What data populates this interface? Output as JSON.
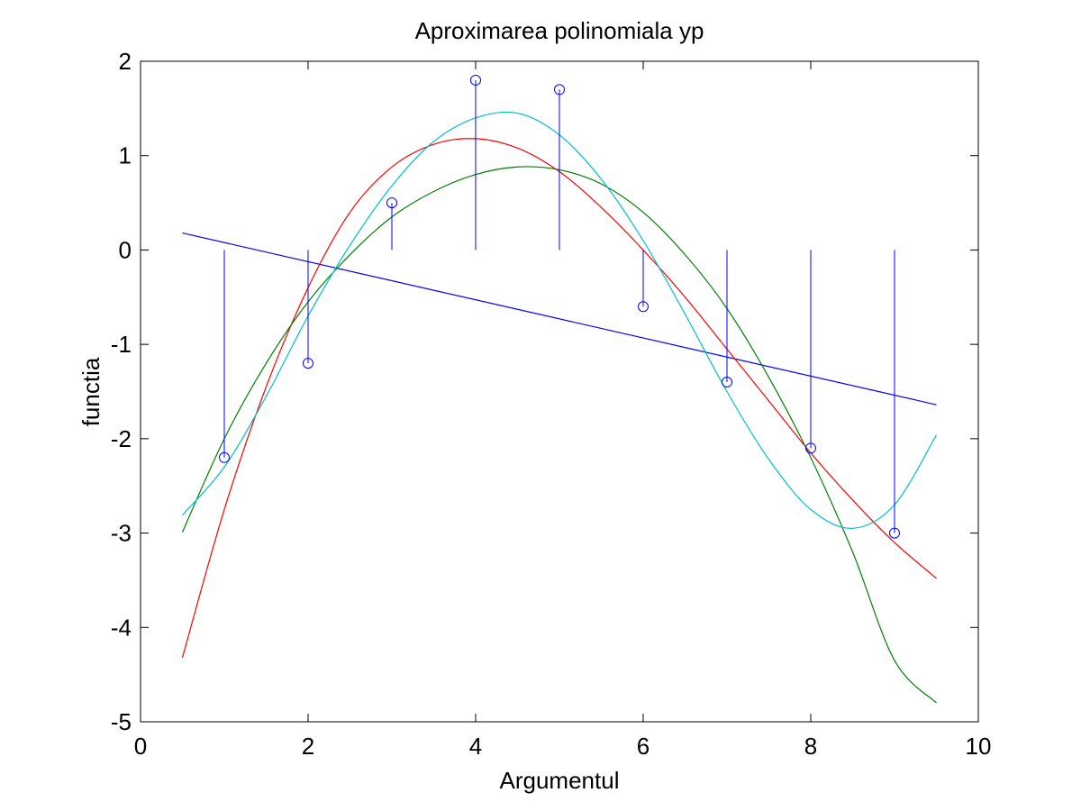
{
  "chart_data": {
    "type": "line",
    "title": "Aproximarea polinomiala yp",
    "xlabel": "Argumentul",
    "ylabel": "functia",
    "xlim": [
      0,
      10
    ],
    "ylim": [
      -5,
      2
    ],
    "xticks": [
      0,
      2,
      4,
      6,
      8,
      10
    ],
    "yticks": [
      -5,
      -4,
      -3,
      -2,
      -1,
      0,
      1,
      2
    ],
    "xtick_labels": [
      "0",
      "2",
      "4",
      "6",
      "8",
      "10"
    ],
    "ytick_labels": [
      "-5",
      "-4",
      "-3",
      "-2",
      "-1",
      "0",
      "1",
      "2"
    ],
    "grid": false,
    "box": true,
    "stem": {
      "color": "#0000ff",
      "marker": "circle",
      "x": [
        1,
        2,
        3,
        4,
        5,
        6,
        7,
        8,
        9
      ],
      "y": [
        -2.2,
        -1.2,
        0.5,
        1.8,
        1.7,
        -0.6,
        -1.4,
        -2.1,
        -3.0
      ]
    },
    "series": [
      {
        "color": "#0000ff",
        "x": [
          0.5,
          9.5
        ],
        "y": [
          0.18,
          -1.64
        ]
      },
      {
        "color": "#ff0000",
        "x": [
          0.5,
          1,
          1.5,
          2,
          2.5,
          3,
          3.5,
          4,
          4.5,
          5,
          5.5,
          6,
          6.5,
          7,
          7.5,
          8,
          8.5,
          9,
          9.5
        ],
        "y": [
          -4.32,
          -2.75,
          -1.45,
          -0.4,
          0.4,
          0.88,
          1.12,
          1.18,
          1.08,
          0.83,
          0.45,
          0.0,
          -0.5,
          -1.05,
          -1.6,
          -2.15,
          -2.65,
          -3.1,
          -3.48
        ]
      },
      {
        "color": "#008000",
        "x": [
          0.5,
          1,
          1.5,
          2,
          2.5,
          3,
          3.5,
          4,
          4.5,
          5,
          5.5,
          6,
          6.5,
          7,
          7.5,
          8,
          8.5,
          9,
          9.5
        ],
        "y": [
          -2.99,
          -2.0,
          -1.2,
          -0.55,
          -0.05,
          0.35,
          0.62,
          0.8,
          0.88,
          0.85,
          0.7,
          0.4,
          -0.05,
          -0.62,
          -1.35,
          -2.2,
          -3.2,
          -4.35,
          -4.8
        ]
      },
      {
        "color": "#00bfd0",
        "x": [
          0.5,
          1,
          1.5,
          2,
          2.5,
          3,
          3.5,
          4,
          4.5,
          5,
          5.5,
          6,
          6.5,
          7,
          7.5,
          8,
          8.5,
          9,
          9.5
        ],
        "y": [
          -2.81,
          -2.3,
          -1.55,
          -0.7,
          0.05,
          0.68,
          1.15,
          1.4,
          1.45,
          1.22,
          0.75,
          0.1,
          -0.68,
          -1.5,
          -2.22,
          -2.75,
          -2.95,
          -2.7,
          -1.96
        ]
      }
    ]
  }
}
